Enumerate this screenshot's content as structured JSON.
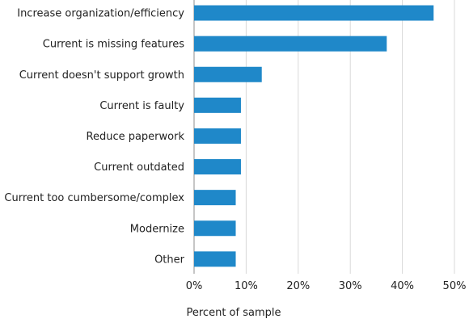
{
  "chart_data": {
    "type": "bar",
    "orientation": "horizontal",
    "categories": [
      "Increase organization/efficiency",
      "Current is missing features",
      "Current doesn't support growth",
      "Current is faulty",
      "Reduce paperwork",
      "Current outdated",
      "Current too cumbersome/complex",
      "Modernize",
      "Other"
    ],
    "values": [
      46,
      37,
      13,
      9,
      9,
      9,
      8,
      8,
      8
    ],
    "title": "",
    "xlabel": "Percent of sample",
    "ylabel": "",
    "xlim": [
      0,
      50
    ],
    "xticks": [
      0,
      10,
      20,
      30,
      40,
      50
    ],
    "tick_suffix": "%",
    "grid": true,
    "bar_color": "#1f88c9"
  }
}
